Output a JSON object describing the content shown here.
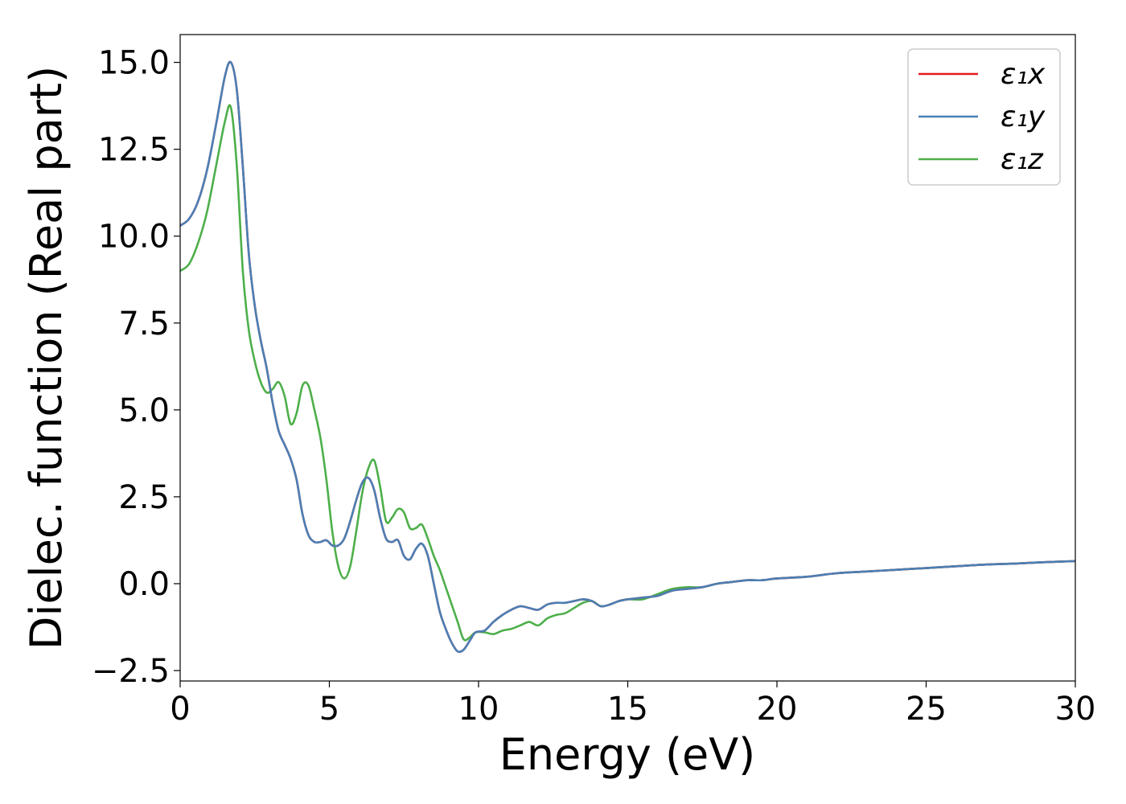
{
  "chart_data": {
    "type": "line",
    "title": "",
    "xlabel": "Energy (eV)",
    "ylabel": "Dielec. function (Real part)",
    "xlim": [
      0,
      30
    ],
    "ylim": [
      -2.8,
      15.8
    ],
    "xticks": [
      0,
      5,
      10,
      15,
      20,
      25,
      30
    ],
    "xtick_labels": [
      "0",
      "5",
      "10",
      "15",
      "20",
      "25",
      "30"
    ],
    "yticks": [
      -2.5,
      0,
      2.5,
      5,
      7.5,
      10,
      12.5,
      15
    ],
    "ytick_labels": [
      "−2.5",
      "0.0",
      "2.5",
      "5.0",
      "7.5",
      "10.0",
      "12.5",
      "15.0"
    ],
    "grid": false,
    "legend_position": "top-right",
    "series": [
      {
        "name": "ε₁x",
        "color": "#e41a1c",
        "x": [
          0,
          0.3,
          0.6,
          0.9,
          1.2,
          1.5,
          1.7,
          1.9,
          2.1,
          2.3,
          2.5,
          2.7,
          2.9,
          3.1,
          3.3,
          3.5,
          3.7,
          3.9,
          4.1,
          4.3,
          4.5,
          4.7,
          4.9,
          5.1,
          5.3,
          5.5,
          5.7,
          5.9,
          6.1,
          6.3,
          6.5,
          6.7,
          6.9,
          7.1,
          7.3,
          7.5,
          7.7,
          7.9,
          8.1,
          8.3,
          8.5,
          8.7,
          8.9,
          9.1,
          9.3,
          9.5,
          9.7,
          9.9,
          10.2,
          10.5,
          10.8,
          11.1,
          11.4,
          11.7,
          12.0,
          12.3,
          12.6,
          12.9,
          13.2,
          13.5,
          13.8,
          14.1,
          14.4,
          14.7,
          15.0,
          15.5,
          16.0,
          16.5,
          17.0,
          17.5,
          18.0,
          18.5,
          19.0,
          19.5,
          20.0,
          21.0,
          22.0,
          23.0,
          24.0,
          25.0,
          26.0,
          27.0,
          28.0,
          29.0,
          30.0
        ],
        "y": [
          10.3,
          10.5,
          11.0,
          11.9,
          13.2,
          14.6,
          15.0,
          14.2,
          12.0,
          9.5,
          8.0,
          7.0,
          6.2,
          5.2,
          4.4,
          4.0,
          3.6,
          3.0,
          2.0,
          1.4,
          1.2,
          1.2,
          1.25,
          1.1,
          1.1,
          1.3,
          1.8,
          2.4,
          2.9,
          3.05,
          2.7,
          1.9,
          1.3,
          1.2,
          1.25,
          0.8,
          0.7,
          1.0,
          1.15,
          0.8,
          0.0,
          -0.8,
          -1.3,
          -1.7,
          -1.95,
          -1.9,
          -1.65,
          -1.4,
          -1.35,
          -1.1,
          -0.9,
          -0.75,
          -0.65,
          -0.7,
          -0.75,
          -0.6,
          -0.55,
          -0.55,
          -0.5,
          -0.45,
          -0.5,
          -0.65,
          -0.6,
          -0.5,
          -0.45,
          -0.4,
          -0.35,
          -0.2,
          -0.15,
          -0.1,
          0.0,
          0.05,
          0.1,
          0.1,
          0.15,
          0.2,
          0.3,
          0.35,
          0.4,
          0.45,
          0.5,
          0.55,
          0.58,
          0.62,
          0.65
        ]
      },
      {
        "name": "ε₁y",
        "color": "#4a7fb5",
        "x": [
          0,
          0.3,
          0.6,
          0.9,
          1.2,
          1.5,
          1.7,
          1.9,
          2.1,
          2.3,
          2.5,
          2.7,
          2.9,
          3.1,
          3.3,
          3.5,
          3.7,
          3.9,
          4.1,
          4.3,
          4.5,
          4.7,
          4.9,
          5.1,
          5.3,
          5.5,
          5.7,
          5.9,
          6.1,
          6.3,
          6.5,
          6.7,
          6.9,
          7.1,
          7.3,
          7.5,
          7.7,
          7.9,
          8.1,
          8.3,
          8.5,
          8.7,
          8.9,
          9.1,
          9.3,
          9.5,
          9.7,
          9.9,
          10.2,
          10.5,
          10.8,
          11.1,
          11.4,
          11.7,
          12.0,
          12.3,
          12.6,
          12.9,
          13.2,
          13.5,
          13.8,
          14.1,
          14.4,
          14.7,
          15.0,
          15.5,
          16.0,
          16.5,
          17.0,
          17.5,
          18.0,
          18.5,
          19.0,
          19.5,
          20.0,
          21.0,
          22.0,
          23.0,
          24.0,
          25.0,
          26.0,
          27.0,
          28.0,
          29.0,
          30.0
        ],
        "y": [
          10.3,
          10.5,
          11.0,
          11.9,
          13.2,
          14.6,
          15.0,
          14.2,
          12.0,
          9.5,
          8.0,
          7.0,
          6.2,
          5.2,
          4.4,
          4.0,
          3.6,
          3.0,
          2.0,
          1.4,
          1.2,
          1.2,
          1.25,
          1.1,
          1.1,
          1.3,
          1.8,
          2.4,
          2.9,
          3.05,
          2.7,
          1.9,
          1.3,
          1.2,
          1.25,
          0.8,
          0.7,
          1.0,
          1.15,
          0.8,
          0.0,
          -0.8,
          -1.3,
          -1.7,
          -1.95,
          -1.9,
          -1.65,
          -1.4,
          -1.35,
          -1.1,
          -0.9,
          -0.75,
          -0.65,
          -0.7,
          -0.75,
          -0.6,
          -0.55,
          -0.55,
          -0.5,
          -0.45,
          -0.5,
          -0.65,
          -0.6,
          -0.5,
          -0.45,
          -0.4,
          -0.35,
          -0.2,
          -0.15,
          -0.1,
          0.0,
          0.05,
          0.1,
          0.1,
          0.15,
          0.2,
          0.3,
          0.35,
          0.4,
          0.45,
          0.5,
          0.55,
          0.58,
          0.62,
          0.65
        ]
      },
      {
        "name": "ε₁z",
        "color": "#4daf4a",
        "x": [
          0,
          0.3,
          0.6,
          0.9,
          1.2,
          1.5,
          1.7,
          1.9,
          2.1,
          2.3,
          2.5,
          2.7,
          2.9,
          3.1,
          3.3,
          3.5,
          3.7,
          3.9,
          4.1,
          4.3,
          4.5,
          4.7,
          4.9,
          5.1,
          5.3,
          5.5,
          5.7,
          5.9,
          6.1,
          6.3,
          6.5,
          6.7,
          6.9,
          7.1,
          7.3,
          7.5,
          7.7,
          7.9,
          8.1,
          8.3,
          8.5,
          8.7,
          8.9,
          9.1,
          9.3,
          9.5,
          9.7,
          9.9,
          10.2,
          10.5,
          10.8,
          11.1,
          11.4,
          11.7,
          12.0,
          12.3,
          12.6,
          12.9,
          13.2,
          13.5,
          13.8,
          14.1,
          14.4,
          14.7,
          15.0,
          15.5,
          16.0,
          16.5,
          17.0,
          17.5,
          18.0,
          18.5,
          19.0,
          19.5,
          20.0,
          21.0,
          22.0,
          23.0,
          24.0,
          25.0,
          26.0,
          27.0,
          28.0,
          29.0,
          30.0
        ],
        "y": [
          9.0,
          9.2,
          9.8,
          10.7,
          12.0,
          13.3,
          13.7,
          12.0,
          9.0,
          7.3,
          6.4,
          5.8,
          5.5,
          5.6,
          5.8,
          5.4,
          4.6,
          4.9,
          5.7,
          5.7,
          5.0,
          4.2,
          3.0,
          1.5,
          0.5,
          0.15,
          0.5,
          1.5,
          2.6,
          3.3,
          3.55,
          2.8,
          1.8,
          1.9,
          2.15,
          2.05,
          1.6,
          1.6,
          1.7,
          1.3,
          0.8,
          0.4,
          -0.1,
          -0.6,
          -1.1,
          -1.6,
          -1.55,
          -1.4,
          -1.4,
          -1.45,
          -1.35,
          -1.3,
          -1.2,
          -1.1,
          -1.2,
          -1.0,
          -0.9,
          -0.85,
          -0.7,
          -0.55,
          -0.5,
          -0.65,
          -0.6,
          -0.5,
          -0.45,
          -0.45,
          -0.3,
          -0.15,
          -0.1,
          -0.1,
          0.0,
          0.05,
          0.1,
          0.1,
          0.15,
          0.2,
          0.3,
          0.35,
          0.4,
          0.45,
          0.5,
          0.55,
          0.58,
          0.62,
          0.65
        ]
      }
    ]
  }
}
